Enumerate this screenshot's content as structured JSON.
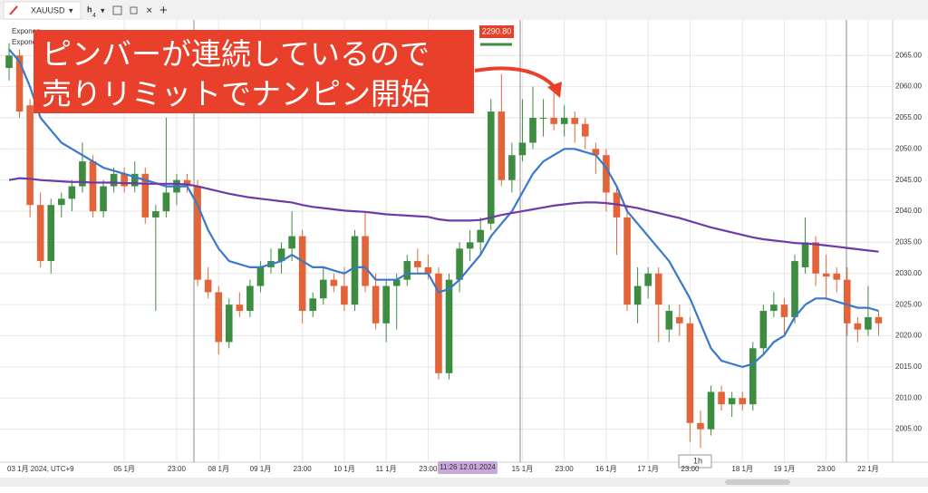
{
  "toolbar": {
    "symbol": "XAUUSD",
    "interval": "h",
    "interval_sub": "4",
    "legend": [
      "Exponen",
      "Expone"
    ],
    "price_tag": "2290.80",
    "crosshair_date": "11:26 12.01.2024",
    "timeframe": "1h"
  },
  "annotation": {
    "lines": [
      "ピンバーが連続しているので",
      "売りリミットでナンピン開始"
    ]
  },
  "chart_data": {
    "type": "candlestick",
    "up_color": "#3d8c40",
    "down_color": "#e4643a",
    "grid": true,
    "categories": [
      "03 1月 2024, UTC+9",
      null,
      null,
      null,
      null,
      null,
      null,
      null,
      null,
      null,
      null,
      "05 1月",
      null,
      null,
      null,
      null,
      "23:00",
      null,
      null,
      null,
      "08 1月",
      null,
      null,
      null,
      "09 1月",
      null,
      null,
      null,
      "23:00",
      null,
      null,
      null,
      "10 1月",
      null,
      null,
      null,
      "11 1月",
      null,
      null,
      null,
      "23:00",
      null,
      null,
      null,
      null,
      null,
      null,
      null,
      null,
      "15 1月",
      null,
      null,
      null,
      "23:00",
      null,
      null,
      null,
      "16 1月",
      null,
      null,
      null,
      "17 1月",
      null,
      null,
      null,
      "23:00",
      null,
      null,
      null,
      null,
      "18 1月",
      null,
      null,
      null,
      "19 1月",
      null,
      null,
      null,
      "23:00",
      null,
      null,
      null,
      "22 1月",
      null
    ],
    "open": [
      2063,
      2065,
      2057,
      2041,
      2032,
      2041,
      2042,
      2044,
      2048,
      2040,
      2044,
      2046,
      2044,
      2046,
      2039,
      2040,
      2043,
      2045,
      2044,
      2029,
      2027,
      2019,
      2025,
      2024,
      2028,
      2031,
      2032,
      2034,
      2036,
      2024,
      2026,
      2029,
      2028,
      2025,
      2036,
      2028,
      2022,
      2028,
      2029,
      2032,
      2031,
      2030,
      2014,
      2029,
      2034,
      2035,
      2038,
      2056,
      2045,
      2049,
      2051,
      2055,
      2055,
      2054,
      2055,
      2054,
      2050,
      2049,
      2043,
      2039,
      2025,
      2028,
      2030,
      2021,
      2023,
      2022,
      2006,
      2005,
      2011,
      2009,
      2010,
      2009,
      2018,
      2024,
      2025,
      2023,
      2031,
      2035,
      2030,
      2030,
      2029,
      2022,
      2021,
      2023
    ],
    "high": [
      2067,
      2066,
      2058,
      2043,
      2042,
      2043,
      2045,
      2051,
      2049,
      2045,
      2047,
      2047,
      2048,
      2047,
      2041,
      2055,
      2046,
      2046,
      2045,
      2031,
      2028,
      2026,
      2027,
      2029,
      2032,
      2034,
      2035,
      2040,
      2037,
      2027,
      2031,
      2030,
      2031,
      2037,
      2040,
      2030,
      2029,
      2030,
      2033,
      2034,
      2033,
      2031,
      2030,
      2035,
      2037,
      2039,
      2058,
      2062,
      2051,
      2058,
      2060,
      2058,
      2059,
      2057,
      2056,
      2055,
      2051,
      2050,
      2044,
      2041,
      2031,
      2031,
      2031,
      2025,
      2025,
      2023,
      2008,
      2012,
      2012,
      2011,
      2011,
      2019,
      2025,
      2027,
      2026,
      2033,
      2039,
      2036,
      2033,
      2031,
      2031,
      2023,
      2028,
      2024
    ],
    "low": [
      2061,
      2055,
      2039,
      2031,
      2030,
      2039,
      2040,
      2043,
      2039,
      2039,
      2043,
      2043,
      2043,
      2038,
      2024,
      2039,
      2041,
      2043,
      2028,
      2026,
      2017,
      2018,
      2023,
      2023,
      2027,
      2030,
      2030,
      2032,
      2022,
      2023,
      2025,
      2027,
      2024,
      2024,
      2027,
      2021,
      2019,
      2021,
      2028,
      2030,
      2029,
      2013,
      2013,
      2027,
      2032,
      2033,
      2037,
      2044,
      2043,
      2048,
      2050,
      2052,
      2053,
      2052,
      2051,
      2050,
      2046,
      2040,
      2033,
      2024,
      2022,
      2026,
      2019,
      2019,
      2020,
      2003,
      2002,
      2004,
      2008,
      2007,
      2008,
      2008,
      2017,
      2023,
      2020,
      2022,
      2030,
      2028,
      2026,
      2027,
      2020,
      2019,
      2020,
      2020
    ],
    "close": [
      2065,
      2056,
      2041,
      2032,
      2041,
      2042,
      2044,
      2048,
      2040,
      2044,
      2046,
      2044,
      2046,
      2039,
      2040,
      2043,
      2045,
      2044,
      2029,
      2027,
      2019,
      2025,
      2024,
      2028,
      2031,
      2032,
      2034,
      2036,
      2024,
      2026,
      2029,
      2028,
      2025,
      2036,
      2028,
      2022,
      2028,
      2029,
      2032,
      2031,
      2030,
      2014,
      2029,
      2034,
      2035,
      2037,
      2056,
      2045,
      2049,
      2051,
      2055,
      2055,
      2054,
      2055,
      2054,
      2052,
      2049,
      2043,
      2039,
      2025,
      2028,
      2030,
      2025,
      2024,
      2022,
      2006,
      2005,
      2011,
      2009,
      2010,
      2009,
      2018,
      2024,
      2025,
      2023,
      2032,
      2035,
      2030,
      2029.5,
      2029,
      2022,
      2021,
      2023,
      2022
    ],
    "lines": [
      {
        "color": "#3a78c9",
        "values": [
          2066,
          2064,
          2060,
          2055,
          2053,
          2051,
          2050,
          2049,
          2048,
          2047,
          2046.5,
          2046,
          2045.5,
          2045,
          2044.5,
          2044,
          2044,
          2044,
          2041,
          2037,
          2034,
          2032,
          2031.5,
          2031,
          2031,
          2031.5,
          2032,
          2033,
          2032,
          2031,
          2031,
          2030.5,
          2030,
          2031,
          2031,
          2029,
          2029,
          2029,
          2030,
          2030,
          2030,
          2027,
          2027.5,
          2029,
          2031,
          2033,
          2036,
          2038,
          2040,
          2043,
          2046,
          2048,
          2049,
          2050,
          2050,
          2049.5,
          2049,
          2047,
          2044,
          2040,
          2038,
          2036,
          2034,
          2032,
          2029,
          2026,
          2022,
          2018,
          2016,
          2015.5,
          2015,
          2015.5,
          2017,
          2019,
          2020,
          2023,
          2025,
          2026,
          2026,
          2025.5,
          2025,
          2024.5,
          2024.5,
          2024
        ]
      },
      {
        "color": "#6f3aa8",
        "values": [
          2045,
          2045.3,
          2045.2,
          2045,
          2044.9,
          2044.8,
          2044.7,
          2044.7,
          2044.6,
          2044.6,
          2044.6,
          2044.5,
          2044.5,
          2044.4,
          2044.4,
          2044.4,
          2044.4,
          2044.3,
          2044,
          2043.6,
          2043.2,
          2042.8,
          2042.5,
          2042.2,
          2042,
          2041.8,
          2041.6,
          2041.4,
          2041,
          2040.7,
          2040.5,
          2040.3,
          2040.1,
          2040,
          2039.9,
          2039.7,
          2039.5,
          2039.4,
          2039.3,
          2039.2,
          2039.1,
          2038.7,
          2038.5,
          2038.5,
          2038.5,
          2038.6,
          2039,
          2039.4,
          2039.7,
          2040,
          2040.3,
          2040.6,
          2040.9,
          2041.1,
          2041.3,
          2041.4,
          2041.4,
          2041.3,
          2041.1,
          2040.8,
          2040.5,
          2040.1,
          2039.7,
          2039.3,
          2038.9,
          2038.4,
          2037.9,
          2037.4,
          2037,
          2036.6,
          2036.2,
          2035.8,
          2035.5,
          2035.3,
          2035.1,
          2034.9,
          2034.8,
          2034.7,
          2034.5,
          2034.3,
          2034.1,
          2033.9,
          2033.7,
          2033.5
        ]
      }
    ],
    "ylim": [
      2000,
      2071
    ],
    "yticks": [
      {
        "value": 2005,
        "label": "2005.00"
      },
      {
        "value": 2010,
        "label": "2010.00"
      },
      {
        "value": 2015,
        "label": "2015.00"
      },
      {
        "value": 2020,
        "label": "2020.00"
      },
      {
        "value": 2025,
        "label": "2025.00"
      },
      {
        "value": 2030,
        "label": "2030.00"
      },
      {
        "value": 2035,
        "label": "2035.00"
      },
      {
        "value": 2040,
        "label": "2040.00"
      },
      {
        "value": 2045,
        "label": "2045.00"
      },
      {
        "value": 2050,
        "label": "2050.00"
      },
      {
        "value": 2055,
        "label": "2055.00"
      },
      {
        "value": 2060,
        "label": "2060.00"
      },
      {
        "value": 2065,
        "label": "2065.00"
      }
    ]
  }
}
